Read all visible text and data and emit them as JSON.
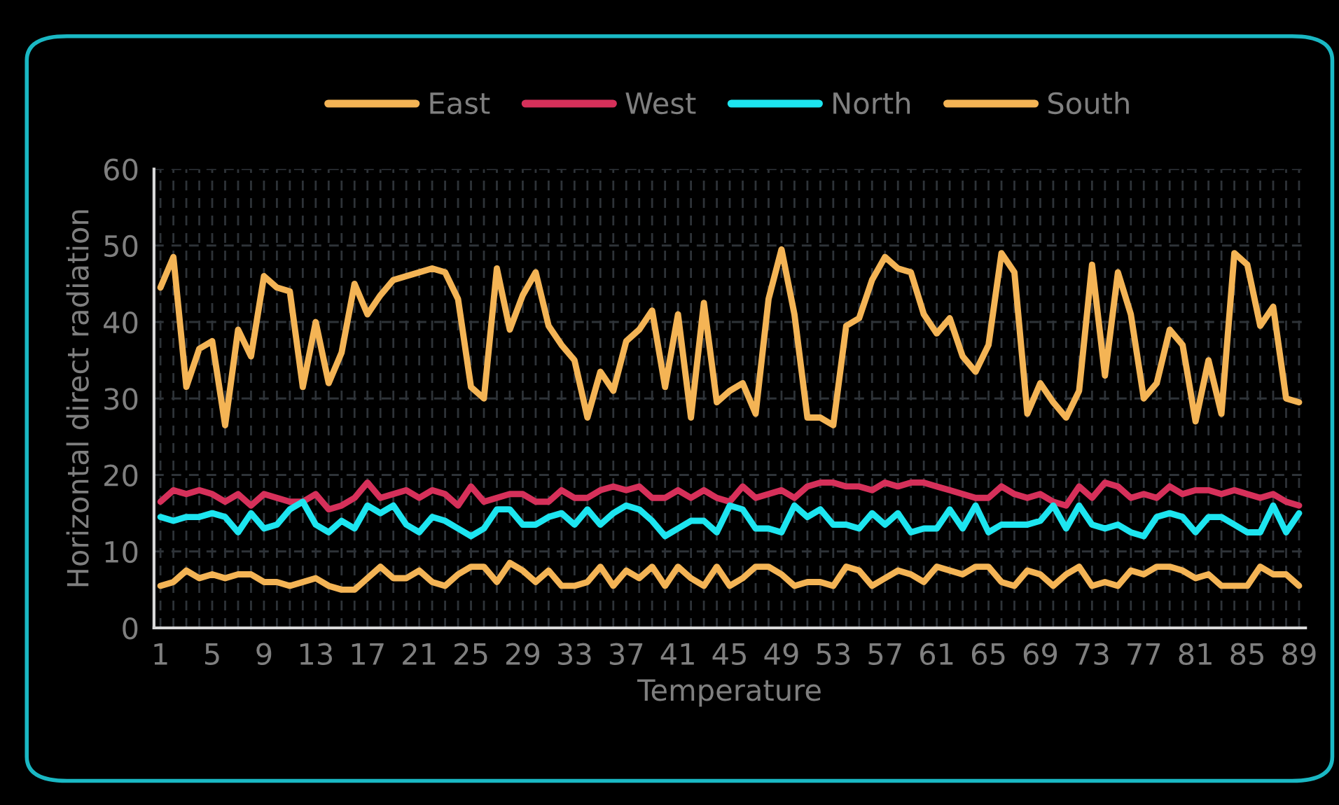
{
  "chart_data": {
    "type": "line",
    "xlabel": "Temperature",
    "ylabel": "Horizontal direct radiation",
    "categories": [
      "1",
      null,
      null,
      null,
      "5",
      null,
      null,
      null,
      "9",
      null,
      null,
      null,
      "13",
      null,
      null,
      null,
      "17",
      null,
      null,
      null,
      "21",
      null,
      null,
      null,
      "25",
      null,
      null,
      null,
      "29",
      null,
      null,
      null,
      "33",
      null,
      null,
      null,
      "37",
      null,
      null,
      null,
      "41",
      null,
      null,
      null,
      "45",
      null,
      null,
      null,
      "49",
      null,
      null,
      null,
      "53",
      null,
      null,
      null,
      "57",
      null,
      null,
      null,
      "61",
      null,
      null,
      null,
      "65",
      null,
      null,
      null,
      "69",
      null,
      null,
      null,
      "73",
      null,
      null,
      null,
      "77",
      null,
      null,
      null,
      "81",
      null,
      null,
      null,
      "85",
      null,
      null,
      null,
      "89"
    ],
    "series": [
      {
        "name": "East",
        "color": "#f4b455",
        "values": [
          5.5,
          6,
          7.5,
          6.5,
          7,
          6.5,
          7,
          7,
          6,
          6,
          5.5,
          6,
          6.5,
          5.5,
          5,
          5,
          6.5,
          8,
          6.5,
          6.5,
          7.5,
          6,
          5.5,
          7,
          8,
          8,
          6,
          8.5,
          7.5,
          6,
          7.5,
          5.5,
          5.5,
          6,
          8,
          5.5,
          7.5,
          6.5,
          8,
          5.5,
          8,
          6.5,
          5.5,
          8,
          5.5,
          6.5,
          8,
          8,
          7,
          5.5,
          6,
          6,
          5.5,
          8,
          7.5,
          5.5,
          6.5,
          7.5,
          7,
          6,
          8,
          7.5,
          7,
          8,
          8,
          6,
          5.5,
          7.5,
          7,
          5.5,
          7,
          8,
          5.5,
          6,
          5.5,
          7.5,
          7,
          8,
          8,
          7.5,
          6.5,
          7,
          5.5,
          5.5,
          5.5,
          8,
          7,
          7,
          5.5
        ]
      },
      {
        "name": "West",
        "color": "#d6305a",
        "values": [
          16.5,
          18,
          17.5,
          18,
          17.5,
          16.5,
          17.5,
          16,
          17.5,
          17,
          16.5,
          16.5,
          17.5,
          15.5,
          16,
          17,
          19,
          17,
          17.5,
          18,
          17,
          18,
          17.5,
          16,
          18.5,
          16.5,
          17,
          17.5,
          17.5,
          16.5,
          16.5,
          18,
          17,
          17,
          18,
          18.5,
          18,
          18.5,
          17,
          17,
          18,
          17,
          18,
          17,
          16.5,
          18.5,
          17,
          17.5,
          18,
          17,
          18.5,
          19,
          19,
          18.5,
          18.5,
          18,
          19,
          18.5,
          19,
          19,
          18.5,
          18,
          17.5,
          17,
          17,
          18.5,
          17.5,
          17,
          17.5,
          16.5,
          16,
          18.5,
          17,
          19,
          18.5,
          17,
          17.5,
          17,
          18.5,
          17.5,
          18,
          18,
          17.5,
          18,
          17.5,
          17,
          17.5,
          16.5,
          16
        ]
      },
      {
        "name": "North",
        "color": "#1de5f0",
        "values": [
          14.5,
          14,
          14.5,
          14.5,
          15,
          14.5,
          12.5,
          15,
          13,
          13.5,
          15.5,
          16.5,
          13.5,
          12.5,
          14,
          13,
          16,
          15,
          16,
          13.5,
          12.5,
          14.5,
          14,
          13,
          12,
          13,
          15.5,
          15.5,
          13.5,
          13.5,
          14.5,
          15,
          13.5,
          15.5,
          13.5,
          15,
          16,
          15.5,
          14,
          12,
          13,
          14,
          14,
          12.5,
          16,
          15.5,
          13,
          13,
          12.5,
          16,
          14.5,
          15.5,
          13.5,
          13.5,
          13,
          15,
          13.5,
          15,
          12.5,
          13,
          13,
          15.5,
          13,
          16,
          12.5,
          13.5,
          13.5,
          13.5,
          14,
          16,
          13,
          16,
          13.5,
          13,
          13.5,
          12.5,
          12,
          14.5,
          15,
          14.5,
          12.5,
          14.5,
          14.5,
          13.5,
          12.5,
          12.5,
          16,
          12.5,
          15
        ]
      },
      {
        "name": "South",
        "color": "#f4b455",
        "values": [
          44.5,
          48.5,
          31.5,
          36.5,
          37.5,
          26.5,
          39,
          35.5,
          46,
          44.5,
          44,
          31.5,
          40,
          32,
          36,
          45,
          41,
          43.5,
          45.5,
          46,
          46.5,
          47,
          46.5,
          43,
          31.5,
          30,
          47,
          39,
          43.5,
          46.5,
          39.5,
          37,
          35,
          27.5,
          33.5,
          31,
          37.5,
          39,
          41.5,
          31.5,
          41,
          27.5,
          42.5,
          29.5,
          31,
          32,
          28,
          43,
          49.5,
          41,
          27.5,
          27.5,
          26.5,
          39.5,
          40.5,
          45.5,
          48.5,
          47,
          46.5,
          41,
          38.5,
          40.5,
          35.5,
          33.5,
          37,
          49,
          46.5,
          28,
          32,
          29.5,
          27.5,
          31,
          47.5,
          33,
          46.5,
          41,
          30,
          32,
          39,
          37,
          27,
          35,
          28,
          49,
          47.5,
          39.5,
          42,
          30,
          29.5
        ]
      }
    ],
    "ylim": [
      0,
      60
    ],
    "yticks": [
      0,
      10,
      20,
      30,
      40,
      50,
      60
    ],
    "grid": true,
    "legend": "top",
    "marker": "none",
    "line_style": "solid"
  }
}
